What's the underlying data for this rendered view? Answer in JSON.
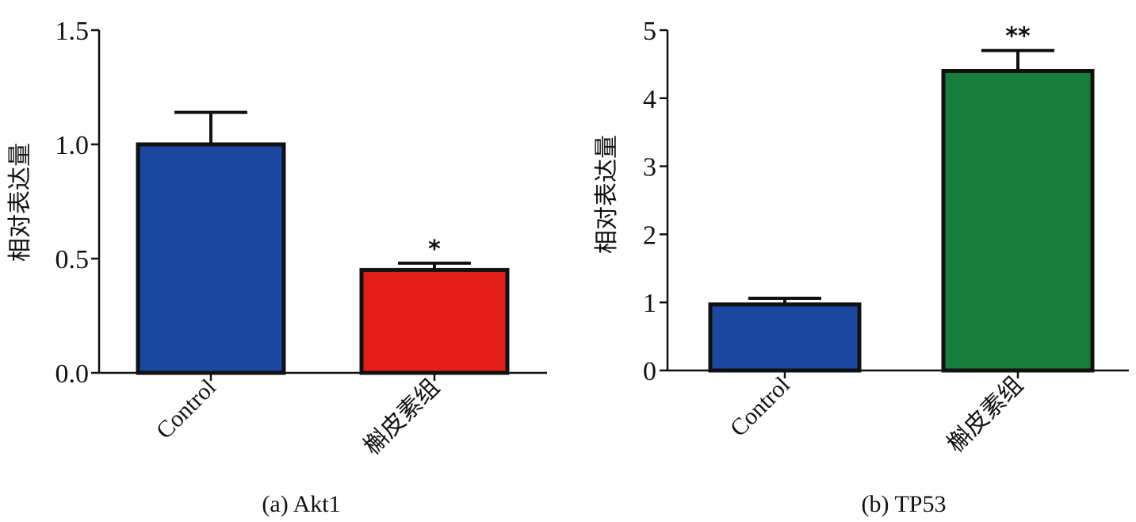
{
  "chart_data": [
    {
      "type": "bar",
      "caption": "(a) Akt1",
      "ylabel": "相对表达量",
      "categories": [
        "Control",
        "槲皮素组"
      ],
      "values": [
        1.0,
        0.45
      ],
      "errors": [
        0.14,
        0.03
      ],
      "significance": [
        "",
        "*"
      ],
      "colors": [
        "#1a47a0",
        "#e31e1a"
      ],
      "ylim": [
        0,
        1.5
      ],
      "yticks": [
        0,
        0.5,
        1.0,
        1.5
      ],
      "ytick_labels": [
        "0.0",
        "0.5",
        "1.0",
        "1.5"
      ],
      "grid": false
    },
    {
      "type": "bar",
      "caption": "(b) TP53",
      "ylabel": "相对表达量",
      "categories": [
        "Control",
        "槲皮素组"
      ],
      "values": [
        0.97,
        4.4
      ],
      "errors": [
        0.09,
        0.3
      ],
      "significance": [
        "",
        "**"
      ],
      "colors": [
        "#1a47a0",
        "#167d3a"
      ],
      "ylim": [
        0,
        5
      ],
      "yticks": [
        0,
        1,
        2,
        3,
        4,
        5
      ],
      "ytick_labels": [
        "0",
        "1",
        "2",
        "3",
        "4",
        "5"
      ],
      "grid": false
    }
  ]
}
